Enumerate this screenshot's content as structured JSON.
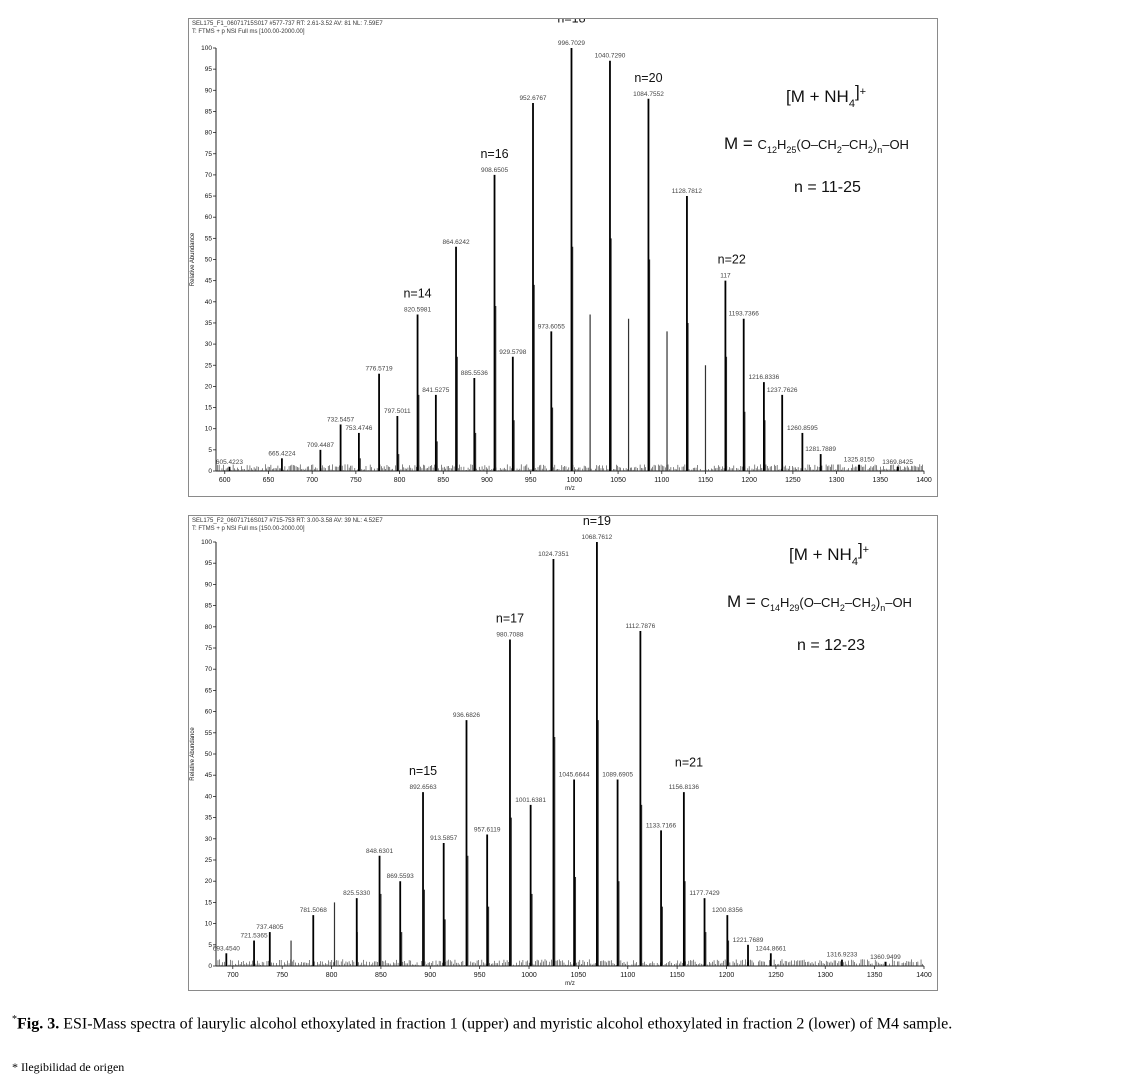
{
  "caption": {
    "marker": "*",
    "label": "Fig. 3.",
    "text": "ESI-Mass spectra of laurylic alcohol ethoxylated in fraction 1 (upper) and myristic alcohol ethoxylated in fraction 2 (lower) of M4 sample."
  },
  "footnote": "* Ilegibilidad de origen",
  "chart_data": [
    {
      "type": "bar",
      "header_line1": "SEL175_F1_06071715S017 #577-737  RT: 2.61-3.52  AV: 81  NL: 7.59E7",
      "header_line2": "T: FTMS + p NSI Full ms [100.00-2000.00]",
      "ylabel": "Relative Abundance",
      "xlabel": "m/z",
      "xlim": [
        590,
        1400
      ],
      "ylim": [
        0,
        100
      ],
      "xticks": [
        600,
        650,
        700,
        750,
        800,
        850,
        900,
        950,
        1000,
        1050,
        1100,
        1150,
        1200,
        1250,
        1300,
        1350,
        1400
      ],
      "yticks": [
        0,
        5,
        10,
        15,
        20,
        25,
        30,
        35,
        40,
        45,
        50,
        55,
        60,
        65,
        70,
        75,
        80,
        85,
        90,
        95,
        100
      ],
      "peaks": [
        {
          "x": 605.4223,
          "y": 1,
          "label": "605.4223"
        },
        {
          "x": 665.4224,
          "y": 3,
          "label": "665.4224"
        },
        {
          "x": 709.4487,
          "y": 5,
          "label": "709.4487"
        },
        {
          "x": 732.5457,
          "y": 11,
          "label": "732.5457"
        },
        {
          "x": 753.4746,
          "y": 9,
          "label": "753.4746"
        },
        {
          "x": 776.5719,
          "y": 23,
          "label": "776.5719"
        },
        {
          "x": 797.5011,
          "y": 13,
          "label": "797.5011"
        },
        {
          "x": 820.5981,
          "y": 37,
          "label": "820.5981"
        },
        {
          "x": 841.5275,
          "y": 18,
          "label": "841.5275"
        },
        {
          "x": 864.6242,
          "y": 53,
          "label": "864.6242"
        },
        {
          "x": 885.5536,
          "y": 22,
          "label": "885.5536"
        },
        {
          "x": 908.6505,
          "y": 70,
          "label": "908.6505"
        },
        {
          "x": 929.5798,
          "y": 27,
          "label": "929.5798"
        },
        {
          "x": 952.6767,
          "y": 87,
          "label": "952.6767"
        },
        {
          "x": 973.6055,
          "y": 33,
          "label": "973.6055"
        },
        {
          "x": 996.7029,
          "y": 100,
          "label": "996.7029"
        },
        {
          "x": 1040.729,
          "y": 97,
          "label": "1040.7290"
        },
        {
          "x": 1084.7552,
          "y": 88,
          "label": "1084.7552"
        },
        {
          "x": 1128.7812,
          "y": 65,
          "label": "1128.7812"
        },
        {
          "x": 1172.8,
          "y": 45,
          "label": "117"
        },
        {
          "x": 1193.7366,
          "y": 36,
          "label": "1193.7366"
        },
        {
          "x": 1216.8336,
          "y": 21,
          "label": "1216.8336"
        },
        {
          "x": 1237.7626,
          "y": 18,
          "label": "1237.7626"
        },
        {
          "x": 1260.8595,
          "y": 9,
          "label": "1260.8595"
        },
        {
          "x": 1281.7889,
          "y": 4,
          "label": "1281.7889"
        },
        {
          "x": 1325.815,
          "y": 1.5,
          "label": "1325.8150"
        },
        {
          "x": 1369.8425,
          "y": 1,
          "label": "1369.8425"
        }
      ],
      "minor_peaks": [
        {
          "x": 755,
          "y": 3
        },
        {
          "x": 799,
          "y": 4
        },
        {
          "x": 822,
          "y": 18
        },
        {
          "x": 843,
          "y": 7
        },
        {
          "x": 866,
          "y": 27
        },
        {
          "x": 887,
          "y": 9
        },
        {
          "x": 910,
          "y": 39
        },
        {
          "x": 931,
          "y": 12
        },
        {
          "x": 954,
          "y": 44
        },
        {
          "x": 975,
          "y": 15
        },
        {
          "x": 998,
          "y": 53
        },
        {
          "x": 1018,
          "y": 37
        },
        {
          "x": 1042,
          "y": 55
        },
        {
          "x": 1062,
          "y": 36
        },
        {
          "x": 1086,
          "y": 50
        },
        {
          "x": 1106,
          "y": 33
        },
        {
          "x": 1130,
          "y": 35
        },
        {
          "x": 1150,
          "y": 25
        },
        {
          "x": 1174,
          "y": 27
        },
        {
          "x": 1195,
          "y": 14
        },
        {
          "x": 1218,
          "y": 12
        }
      ],
      "annotations": [
        {
          "text": "n=14",
          "x": 820.5981,
          "y": 41
        },
        {
          "text": "n=16",
          "x": 908.6505,
          "y": 74
        },
        {
          "text": "n=18",
          "x": 996.7029,
          "y": 106
        },
        {
          "text": "n=20",
          "x": 1084.7552,
          "y": 92
        },
        {
          "text": "n=22",
          "x": 1180,
          "y": 49
        }
      ],
      "formula": {
        "ion": "[M + NH",
        "ion_sub": "4",
        "ion_close": "]",
        "ion_sup": "+",
        "m_label": "M =",
        "c_main": "C",
        "c_sub": "12",
        "h_main": "H",
        "h_sub": "25",
        "chain": "(O–CH",
        "chain_sub1": "2",
        "chain_mid": "–CH",
        "chain_sub2": "2",
        "chain_close": ")",
        "n_sub": "n",
        "oh": "–OH",
        "range": "n = 11-25"
      }
    },
    {
      "type": "bar",
      "header_line1": "SEL175_F2_06071716S017 #715-753  RT: 3.00-3.58  AV: 39  NL: 4.52E7",
      "header_line2": "T: FTMS + p NSI Full ms [150.00-2000.00]",
      "ylabel": "Relative Abundance",
      "xlabel": "m/z",
      "xlim": [
        683,
        1400
      ],
      "ylim": [
        0,
        100
      ],
      "xticks": [
        700,
        750,
        800,
        850,
        900,
        950,
        1000,
        1050,
        1100,
        1150,
        1200,
        1250,
        1300,
        1350,
        1400
      ],
      "yticks": [
        0,
        5,
        10,
        15,
        20,
        25,
        30,
        35,
        40,
        45,
        50,
        55,
        60,
        65,
        70,
        75,
        80,
        85,
        90,
        95,
        100
      ],
      "peaks": [
        {
          "x": 693.454,
          "y": 3,
          "label": "693.4540"
        },
        {
          "x": 721.5365,
          "y": 6,
          "label": "721.5365"
        },
        {
          "x": 737.4805,
          "y": 8,
          "label": "737.4805"
        },
        {
          "x": 781.5068,
          "y": 12,
          "label": "781.5068"
        },
        {
          "x": 825.533,
          "y": 16,
          "label": "825.5330"
        },
        {
          "x": 848.6301,
          "y": 26,
          "label": "848.6301"
        },
        {
          "x": 869.5593,
          "y": 20,
          "label": "869.5593"
        },
        {
          "x": 892.6563,
          "y": 41,
          "label": "892.6563"
        },
        {
          "x": 913.5857,
          "y": 29,
          "label": "913.5857"
        },
        {
          "x": 936.6826,
          "y": 58,
          "label": "936.6826"
        },
        {
          "x": 957.6119,
          "y": 31,
          "label": "957.6119"
        },
        {
          "x": 980.7088,
          "y": 77,
          "label": "980.7088"
        },
        {
          "x": 1001.6381,
          "y": 38,
          "label": "1001.6381"
        },
        {
          "x": 1024.7351,
          "y": 96,
          "label": "1024.7351"
        },
        {
          "x": 1045.6644,
          "y": 44,
          "label": "1045.6644"
        },
        {
          "x": 1068.7612,
          "y": 100,
          "label": "1068.7612"
        },
        {
          "x": 1089.6905,
          "y": 44,
          "label": "1089.6905"
        },
        {
          "x": 1112.7876,
          "y": 79,
          "label": "1112.7876"
        },
        {
          "x": 1133.7166,
          "y": 32,
          "label": "1133.7166"
        },
        {
          "x": 1156.8136,
          "y": 41,
          "label": "1156.8136"
        },
        {
          "x": 1177.7429,
          "y": 16,
          "label": "1177.7429"
        },
        {
          "x": 1200.8356,
          "y": 12,
          "label": "1200.8356"
        },
        {
          "x": 1221.7689,
          "y": 5,
          "label": "1221.7689"
        },
        {
          "x": 1244.8661,
          "y": 3,
          "label": "1244.8661"
        },
        {
          "x": 1316.9233,
          "y": 1.5,
          "label": "1316.9233"
        },
        {
          "x": 1360.9499,
          "y": 1,
          "label": "1360.9499"
        }
      ],
      "minor_peaks": [
        {
          "x": 759,
          "y": 6
        },
        {
          "x": 803,
          "y": 15
        },
        {
          "x": 826,
          "y": 8
        },
        {
          "x": 850,
          "y": 17
        },
        {
          "x": 871,
          "y": 8
        },
        {
          "x": 894,
          "y": 18
        },
        {
          "x": 915,
          "y": 11
        },
        {
          "x": 938,
          "y": 26
        },
        {
          "x": 959,
          "y": 14
        },
        {
          "x": 982,
          "y": 35
        },
        {
          "x": 1003,
          "y": 17
        },
        {
          "x": 1026,
          "y": 54
        },
        {
          "x": 1047,
          "y": 21
        },
        {
          "x": 1070,
          "y": 58
        },
        {
          "x": 1091,
          "y": 20
        },
        {
          "x": 1114,
          "y": 38
        },
        {
          "x": 1135,
          "y": 14
        },
        {
          "x": 1158,
          "y": 20
        },
        {
          "x": 1179,
          "y": 8
        },
        {
          "x": 1202,
          "y": 6
        }
      ],
      "annotations": [
        {
          "text": "n=15",
          "x": 892.6563,
          "y": 45
        },
        {
          "text": "n=17",
          "x": 980.7088,
          "y": 81
        },
        {
          "text": "n=19",
          "x": 1068.7612,
          "y": 104
        },
        {
          "text": "n=21",
          "x": 1162,
          "y": 47
        }
      ],
      "formula": {
        "ion": "[M + NH",
        "ion_sub": "4",
        "ion_close": "]",
        "ion_sup": "+",
        "m_label": "M =",
        "c_main": "C",
        "c_sub": "14",
        "h_main": "H",
        "h_sub": "29",
        "chain": "(O–CH",
        "chain_sub1": "2",
        "chain_mid": "–CH",
        "chain_sub2": "2",
        "chain_close": ")",
        "n_sub": "n",
        "oh": "–OH",
        "range": "n = 12-23"
      }
    }
  ]
}
